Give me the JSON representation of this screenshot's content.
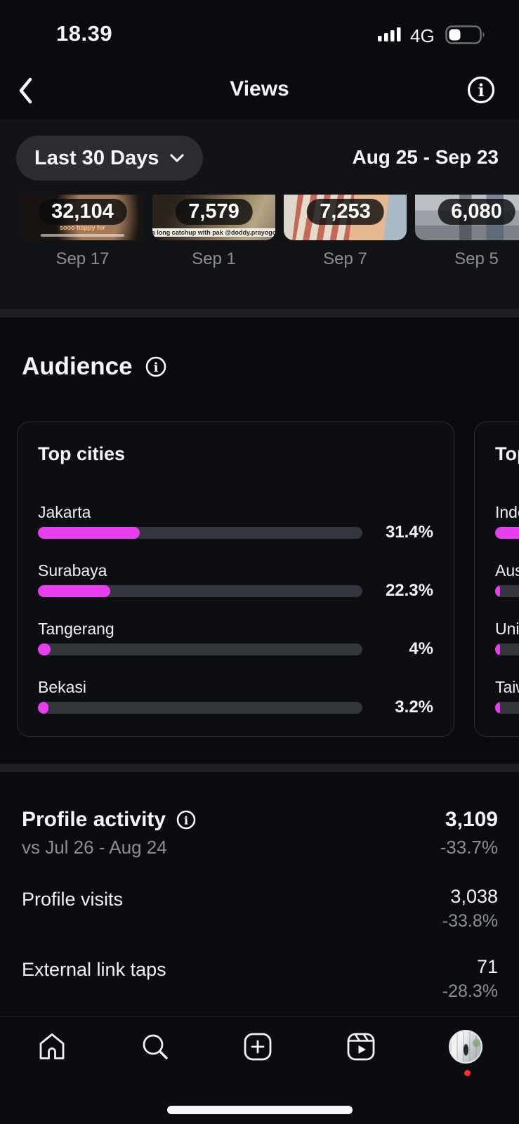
{
  "colors": {
    "accent": "#e93ef0",
    "notification_dot": "#fb2c3c"
  },
  "status_bar": {
    "time": "18.39",
    "network": "4G",
    "battery_fill_ratio": 0.38
  },
  "nav": {
    "title": "Views"
  },
  "filter": {
    "period_label": "Last 30 Days",
    "date_range": "Aug 25 - Sep 23"
  },
  "posts": [
    {
      "views": "32,104",
      "date": "Sep 17",
      "caption": "sooo happy for"
    },
    {
      "views": "7,579",
      "date": "Sep 1",
      "caption": "a long catchup with pak @doddy.prayogo"
    },
    {
      "views": "7,253",
      "date": "Sep 7"
    },
    {
      "views": "6,080",
      "date": "Sep 5"
    }
  ],
  "audience": {
    "title": "Audience",
    "cards": [
      {
        "title": "Top cities",
        "rows": [
          {
            "label": "Jakarta",
            "pct_label": "31.4%",
            "pct": 31.4
          },
          {
            "label": "Surabaya",
            "pct_label": "22.3%",
            "pct": 22.3
          },
          {
            "label": "Tangerang",
            "pct_label": "4%",
            "pct": 4
          },
          {
            "label": "Bekasi",
            "pct_label": "3.2%",
            "pct": 3.2
          }
        ]
      },
      {
        "title": "Top countries",
        "rows": [
          {
            "label": "Indonesia",
            "pct": 85
          },
          {
            "label": "Australia",
            "pct": 1.5
          },
          {
            "label": "United States",
            "pct": 1.5
          },
          {
            "label": "Taiwan",
            "pct": 1.5
          }
        ]
      }
    ]
  },
  "profile_activity": {
    "title": "Profile activity",
    "total": "3,109",
    "total_delta": "-33.7%",
    "compare_label": "vs Jul 26 - Aug 24",
    "metrics": [
      {
        "label": "Profile visits",
        "value": "3,038",
        "delta": "-33.8%"
      },
      {
        "label": "External link taps",
        "value": "71",
        "delta": "-28.3%"
      }
    ]
  },
  "tab_bar": {
    "items": [
      "home",
      "search",
      "create",
      "reels",
      "profile"
    ]
  }
}
